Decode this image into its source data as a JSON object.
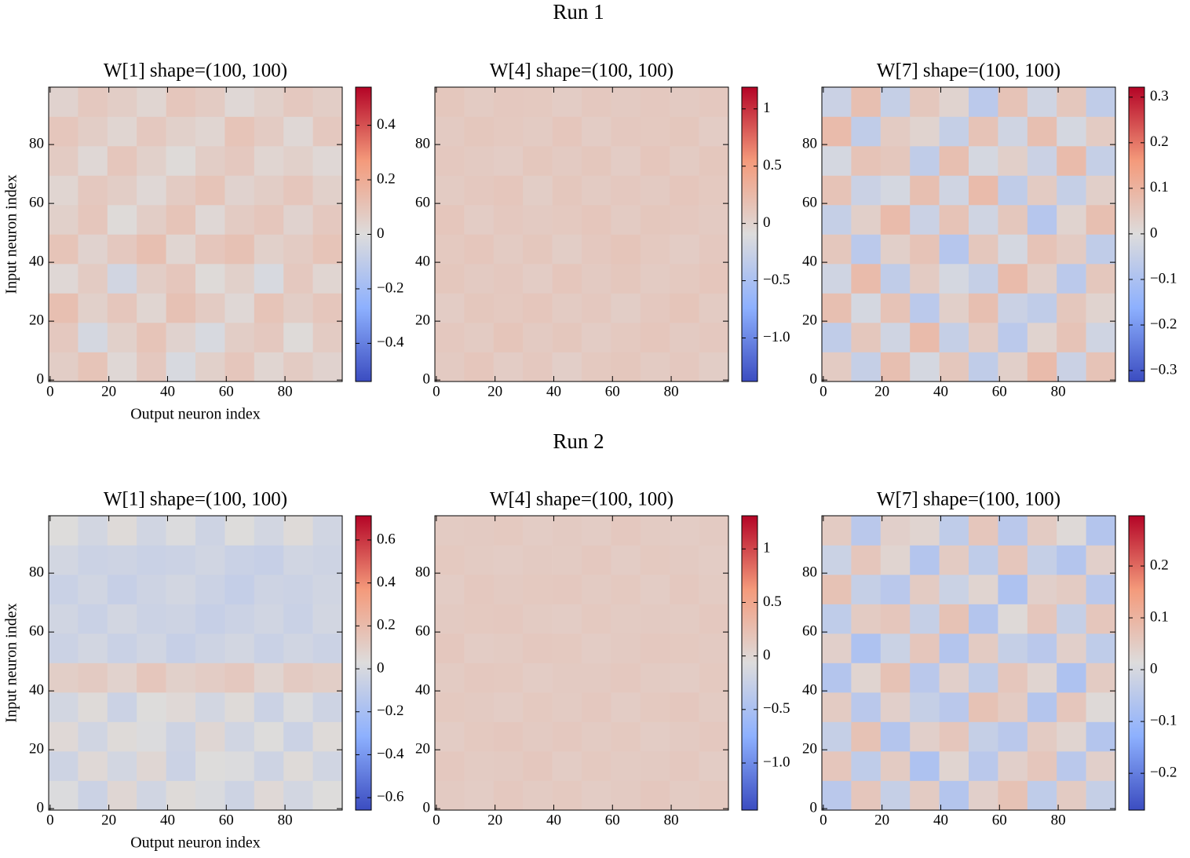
{
  "suptitles": [
    "Run 1",
    "Run 2"
  ],
  "chart_data": [
    {
      "type": "heatmap",
      "title": "W[1]  shape=(100, 100)",
      "xlabel": "Output neuron index",
      "ylabel": "Input neuron index",
      "xlim": [
        -0.5,
        99.5
      ],
      "ylim": [
        -0.5,
        99.5
      ],
      "xticks": [
        0,
        20,
        40,
        60,
        80
      ],
      "yticks": [
        0,
        20,
        40,
        60,
        80
      ],
      "x_edges": [
        -0.5,
        9.5,
        19.5,
        29.5,
        39.5,
        49.5,
        59.5,
        69.5,
        79.5,
        89.5,
        99.5
      ],
      "y_edges": [
        -0.5,
        9.5,
        19.5,
        29.5,
        39.5,
        49.5,
        59.5,
        69.5,
        79.5,
        89.5,
        99.5
      ],
      "colormap": [
        "#3b4cc0",
        "#8db0fe",
        "#dddcdc",
        "#f49a7b",
        "#b40426"
      ],
      "zlim": [
        -0.54,
        0.54
      ],
      "colorbar_ticks": [
        {
          "value": -0.4,
          "label": "−0.4"
        },
        {
          "value": -0.2,
          "label": "−0.2"
        },
        0.0,
        0.2,
        0.4
      ],
      "z": [
        [
          0.06,
          0.1,
          0.02,
          0.08,
          -0.02,
          0.05,
          0.09,
          0.03,
          0.07,
          0.04
        ],
        [
          0.08,
          -0.03,
          0.05,
          0.1,
          0.04,
          -0.02,
          0.06,
          0.08,
          0.01,
          0.07
        ],
        [
          0.12,
          0.05,
          0.09,
          0.03,
          0.11,
          0.07,
          0.02,
          0.1,
          0.06,
          0.09
        ],
        [
          0.02,
          0.07,
          -0.04,
          0.06,
          0.09,
          0.01,
          0.05,
          -0.02,
          0.08,
          0.03
        ],
        [
          0.1,
          0.04,
          0.08,
          0.12,
          0.03,
          0.09,
          0.11,
          0.05,
          0.07,
          0.1
        ],
        [
          0.05,
          0.09,
          0.01,
          0.06,
          0.1,
          0.02,
          0.07,
          0.09,
          0.04,
          0.08
        ],
        [
          0.03,
          0.08,
          0.06,
          0.02,
          0.07,
          0.1,
          0.04,
          0.06,
          0.09,
          0.05
        ],
        [
          0.07,
          0.02,
          0.09,
          0.05,
          0.01,
          0.06,
          0.08,
          0.03,
          0.05,
          0.02
        ],
        [
          0.09,
          0.06,
          0.03,
          0.08,
          0.05,
          0.03,
          0.1,
          0.07,
          0.02,
          0.08
        ],
        [
          0.04,
          0.08,
          0.06,
          0.03,
          0.09,
          0.07,
          0.02,
          0.05,
          0.08,
          0.06
        ]
      ]
    },
    {
      "type": "heatmap",
      "title": "W[4]  shape=(100, 100)",
      "xlim": [
        -0.5,
        99.5
      ],
      "ylim": [
        -0.5,
        99.5
      ],
      "xticks": [
        0,
        20,
        40,
        60,
        80
      ],
      "yticks": [
        0,
        20,
        40,
        60,
        80
      ],
      "x_edges": [
        -0.5,
        9.5,
        19.5,
        29.5,
        39.5,
        49.5,
        59.5,
        69.5,
        79.5,
        89.5,
        99.5
      ],
      "y_edges": [
        -0.5,
        9.5,
        19.5,
        29.5,
        39.5,
        49.5,
        59.5,
        69.5,
        79.5,
        89.5,
        99.5
      ],
      "colormap": [
        "#3b4cc0",
        "#8db0fe",
        "#dddcdc",
        "#f49a7b",
        "#b40426"
      ],
      "zlim": [
        -1.38,
        1.19
      ],
      "colorbar_ticks": [
        {
          "value": -1.0,
          "label": "−1.0"
        },
        {
          "value": -0.5,
          "label": "−0.5"
        },
        0.0,
        0.5,
        1.0
      ],
      "z": [
        [
          0.08,
          0.12,
          0.06,
          0.1,
          0.04,
          0.09,
          0.11,
          0.07,
          0.1,
          0.05
        ],
        [
          0.1,
          0.07,
          0.13,
          0.08,
          0.11,
          0.06,
          0.09,
          0.12,
          0.08,
          0.1
        ],
        [
          0.06,
          0.11,
          0.09,
          0.12,
          0.07,
          0.1,
          0.05,
          0.1,
          0.13,
          0.07
        ],
        [
          0.11,
          0.08,
          0.1,
          0.06,
          0.12,
          0.08,
          0.11,
          0.07,
          0.09,
          0.12
        ],
        [
          0.09,
          0.12,
          0.07,
          0.11,
          0.05,
          0.1,
          0.13,
          0.09,
          0.06,
          0.1
        ],
        [
          0.12,
          0.06,
          0.1,
          0.08,
          0.09,
          0.12,
          0.07,
          0.11,
          0.1,
          0.08
        ],
        [
          0.07,
          0.1,
          0.12,
          0.05,
          0.11,
          0.07,
          0.1,
          0.08,
          0.12,
          0.09
        ],
        [
          0.1,
          0.08,
          0.06,
          0.11,
          0.08,
          0.11,
          0.06,
          0.12,
          0.07,
          0.11
        ],
        [
          0.08,
          0.11,
          0.09,
          0.07,
          0.12,
          0.06,
          0.1,
          0.09,
          0.11,
          0.06
        ],
        [
          0.11,
          0.07,
          0.1,
          0.09,
          0.06,
          0.1,
          0.08,
          0.1,
          0.08,
          0.1
        ]
      ]
    },
    {
      "type": "heatmap",
      "title": "W[7]  shape=(100, 100)",
      "xlim": [
        -0.5,
        99.5
      ],
      "ylim": [
        -0.5,
        99.5
      ],
      "xticks": [
        0,
        20,
        40,
        60,
        80
      ],
      "yticks": [
        0,
        20,
        40,
        60,
        80
      ],
      "x_edges": [
        -0.5,
        9.5,
        19.5,
        29.5,
        39.5,
        49.5,
        59.5,
        69.5,
        79.5,
        89.5,
        99.5
      ],
      "y_edges": [
        -0.5,
        9.5,
        19.5,
        29.5,
        39.5,
        49.5,
        59.5,
        69.5,
        79.5,
        89.5,
        99.5
      ],
      "colormap": [
        "#3b4cc0",
        "#8db0fe",
        "#dddcdc",
        "#f49a7b",
        "#b40426"
      ],
      "zlim": [
        -0.324,
        0.322
      ],
      "colorbar_ticks": [
        {
          "value": -0.3,
          "label": "−0.3"
        },
        {
          "value": -0.2,
          "label": "−0.2"
        },
        {
          "value": -0.1,
          "label": "−0.1"
        },
        0.0,
        0.1,
        0.2,
        0.3
      ],
      "z": [
        [
          0.04,
          -0.05,
          0.07,
          -0.02,
          0.05,
          -0.06,
          0.03,
          0.08,
          -0.04,
          0.06
        ],
        [
          -0.06,
          0.05,
          -0.03,
          0.08,
          -0.05,
          0.04,
          -0.07,
          0.02,
          0.06,
          -0.03
        ],
        [
          0.07,
          -0.02,
          0.06,
          -0.07,
          0.03,
          0.07,
          -0.04,
          -0.06,
          0.05,
          0.02
        ],
        [
          -0.03,
          0.08,
          -0.06,
          0.04,
          -0.02,
          -0.05,
          0.08,
          0.03,
          -0.07,
          0.05
        ],
        [
          0.05,
          -0.07,
          0.03,
          0.06,
          -0.08,
          0.05,
          -0.02,
          0.06,
          0.04,
          -0.06
        ],
        [
          -0.05,
          0.03,
          0.08,
          -0.04,
          0.06,
          -0.03,
          0.05,
          -0.08,
          0.02,
          0.07
        ],
        [
          0.06,
          -0.04,
          -0.02,
          0.07,
          -0.03,
          0.08,
          -0.06,
          0.04,
          -0.05,
          0.03
        ],
        [
          -0.02,
          0.06,
          0.05,
          -0.06,
          0.07,
          -0.02,
          0.03,
          -0.04,
          0.08,
          -0.05
        ],
        [
          0.08,
          -0.06,
          0.04,
          0.02,
          -0.05,
          0.06,
          -0.03,
          0.07,
          -0.02,
          0.04
        ],
        [
          -0.04,
          0.07,
          -0.05,
          0.05,
          0.02,
          -0.07,
          0.06,
          -0.03,
          0.05,
          -0.06
        ]
      ]
    },
    {
      "type": "heatmap",
      "title": "W[1]  shape=(100, 100)",
      "xlabel": "Output neuron index",
      "ylabel": "Input neuron index",
      "xlim": [
        -0.5,
        99.5
      ],
      "ylim": [
        -0.5,
        99.5
      ],
      "xticks": [
        0,
        20,
        40,
        60,
        80
      ],
      "yticks": [
        0,
        20,
        40,
        60,
        80
      ],
      "x_edges": [
        -0.5,
        9.5,
        19.5,
        29.5,
        39.5,
        49.5,
        59.5,
        69.5,
        79.5,
        89.5,
        99.5
      ],
      "y_edges": [
        -0.5,
        9.5,
        19.5,
        29.5,
        39.5,
        49.5,
        59.5,
        69.5,
        79.5,
        89.5,
        99.5
      ],
      "colormap": [
        "#3b4cc0",
        "#8db0fe",
        "#dddcdc",
        "#f49a7b",
        "#b40426"
      ],
      "zlim": [
        -0.658,
        0.713
      ],
      "colorbar_ticks": [
        {
          "value": -0.6,
          "label": "−0.6"
        },
        {
          "value": -0.4,
          "label": "−0.4"
        },
        {
          "value": -0.2,
          "label": "−0.2"
        },
        0.0,
        0.2,
        0.4,
        0.6
      ],
      "z": [
        [
          0.02,
          -0.05,
          0.06,
          -0.03,
          0.04,
          0.01,
          -0.04,
          0.05,
          -0.02,
          0.03
        ],
        [
          -0.04,
          0.05,
          -0.02,
          0.06,
          -0.05,
          0.03,
          0.02,
          -0.04,
          0.04,
          -0.03
        ],
        [
          0.05,
          -0.03,
          0.04,
          0.02,
          -0.04,
          0.06,
          -0.03,
          0.03,
          -0.05,
          0.04
        ],
        [
          -0.02,
          0.04,
          -0.05,
          0.03,
          0.05,
          -0.02,
          0.04,
          -0.05,
          0.02,
          -0.04
        ],
        [
          0.1,
          0.12,
          0.08,
          0.14,
          0.09,
          0.11,
          0.13,
          0.07,
          0.12,
          0.1
        ],
        [
          -0.05,
          -0.02,
          -0.06,
          -0.03,
          -0.07,
          -0.04,
          -0.02,
          -0.06,
          -0.03,
          -0.05
        ],
        [
          -0.03,
          -0.06,
          -0.02,
          -0.05,
          -0.04,
          -0.07,
          -0.05,
          -0.03,
          -0.06,
          -0.02
        ],
        [
          -0.06,
          -0.03,
          -0.07,
          -0.04,
          -0.02,
          -0.05,
          -0.08,
          -0.04,
          -0.05,
          -0.03
        ],
        [
          -0.02,
          -0.05,
          -0.04,
          -0.06,
          -0.05,
          -0.03,
          -0.06,
          -0.07,
          -0.03,
          -0.04
        ],
        [
          0.03,
          -0.02,
          0.04,
          -0.03,
          0.02,
          -0.04,
          0.03,
          -0.02,
          0.04,
          -0.03
        ]
      ]
    },
    {
      "type": "heatmap",
      "title": "W[4]  shape=(100, 100)",
      "xlim": [
        -0.5,
        99.5
      ],
      "ylim": [
        -0.5,
        99.5
      ],
      "xticks": [
        0,
        20,
        40,
        60,
        80
      ],
      "yticks": [
        0,
        20,
        40,
        60,
        80
      ],
      "x_edges": [
        -0.5,
        9.5,
        19.5,
        29.5,
        39.5,
        49.5,
        59.5,
        69.5,
        79.5,
        89.5,
        99.5
      ],
      "y_edges": [
        -0.5,
        9.5,
        19.5,
        29.5,
        39.5,
        49.5,
        59.5,
        69.5,
        79.5,
        89.5,
        99.5
      ],
      "colormap": [
        "#3b4cc0",
        "#8db0fe",
        "#dddcdc",
        "#f49a7b",
        "#b40426"
      ],
      "zlim": [
        -1.44,
        1.31
      ],
      "colorbar_ticks": [
        {
          "value": -1.0,
          "label": "−1.0"
        },
        {
          "value": -0.5,
          "label": "−0.5"
        },
        0.0,
        0.5,
        1.0
      ],
      "z": [
        [
          0.12,
          0.1,
          0.14,
          0.11,
          0.13,
          0.1,
          0.12,
          0.15,
          0.11,
          0.13
        ],
        [
          0.14,
          0.11,
          0.12,
          0.15,
          0.1,
          0.13,
          0.11,
          0.12,
          0.14,
          0.1
        ],
        [
          0.1,
          0.13,
          0.15,
          0.12,
          0.14,
          0.11,
          0.13,
          0.1,
          0.12,
          0.14
        ],
        [
          0.13,
          0.12,
          0.1,
          0.13,
          0.11,
          0.14,
          0.1,
          0.13,
          0.15,
          0.11
        ],
        [
          0.11,
          0.14,
          0.13,
          0.1,
          0.12,
          0.12,
          0.14,
          0.11,
          0.1,
          0.13
        ],
        [
          0.15,
          0.1,
          0.11,
          0.14,
          0.13,
          0.1,
          0.12,
          0.14,
          0.13,
          0.12
        ],
        [
          0.12,
          0.13,
          0.14,
          0.11,
          0.1,
          0.13,
          0.11,
          0.12,
          0.11,
          0.14
        ],
        [
          0.1,
          0.14,
          0.12,
          0.13,
          0.14,
          0.11,
          0.13,
          0.1,
          0.14,
          0.11
        ],
        [
          0.13,
          0.11,
          0.1,
          0.12,
          0.11,
          0.14,
          0.1,
          0.13,
          0.12,
          0.1
        ],
        [
          0.11,
          0.12,
          0.13,
          0.1,
          0.12,
          0.1,
          0.14,
          0.11,
          0.1,
          0.12
        ]
      ]
    },
    {
      "type": "heatmap",
      "title": "W[7]  shape=(100, 100)",
      "xlim": [
        -0.5,
        99.5
      ],
      "ylim": [
        -0.5,
        99.5
      ],
      "xticks": [
        0,
        20,
        40,
        60,
        80
      ],
      "yticks": [
        0,
        20,
        40,
        60,
        80
      ],
      "x_edges": [
        -0.5,
        9.5,
        19.5,
        29.5,
        39.5,
        49.5,
        59.5,
        69.5,
        79.5,
        89.5,
        99.5
      ],
      "y_edges": [
        -0.5,
        9.5,
        19.5,
        29.5,
        39.5,
        49.5,
        59.5,
        69.5,
        79.5,
        89.5,
        99.5
      ],
      "colormap": [
        "#3b4cc0",
        "#8db0fe",
        "#dddcdc",
        "#f49a7b",
        "#b40426"
      ],
      "zlim": [
        -0.271,
        0.297
      ],
      "colorbar_ticks": [
        {
          "value": -0.2,
          "label": "−0.2"
        },
        {
          "value": -0.1,
          "label": "−0.1"
        },
        0.0,
        0.1,
        0.2
      ],
      "z": [
        [
          -0.05,
          0.06,
          -0.03,
          0.05,
          -0.06,
          0.04,
          0.07,
          -0.04,
          0.05,
          -0.03
        ],
        [
          0.06,
          -0.04,
          0.05,
          -0.07,
          0.03,
          -0.05,
          0.04,
          0.06,
          -0.05,
          0.04
        ],
        [
          -0.03,
          0.07,
          -0.06,
          0.04,
          0.06,
          -0.03,
          -0.05,
          0.05,
          0.03,
          -0.06
        ],
        [
          0.05,
          -0.05,
          0.04,
          -0.03,
          -0.05,
          0.07,
          0.05,
          -0.06,
          0.06,
          0.02
        ],
        [
          -0.06,
          0.03,
          0.07,
          -0.05,
          0.04,
          -0.04,
          0.06,
          0.03,
          -0.07,
          0.05
        ],
        [
          0.04,
          -0.07,
          -0.02,
          0.06,
          -0.06,
          0.05,
          -0.03,
          -0.05,
          0.04,
          -0.04
        ],
        [
          -0.04,
          0.05,
          0.06,
          -0.03,
          0.07,
          -0.06,
          0.02,
          0.06,
          -0.03,
          0.06
        ],
        [
          0.07,
          -0.03,
          -0.05,
          0.05,
          -0.02,
          0.03,
          -0.07,
          0.04,
          0.05,
          -0.05
        ],
        [
          -0.02,
          0.06,
          0.03,
          -0.06,
          0.05,
          -0.04,
          0.06,
          -0.03,
          -0.06,
          0.04
        ],
        [
          0.05,
          -0.05,
          0.04,
          0.03,
          -0.04,
          0.06,
          -0.05,
          0.05,
          0.02,
          -0.06
        ]
      ]
    }
  ]
}
